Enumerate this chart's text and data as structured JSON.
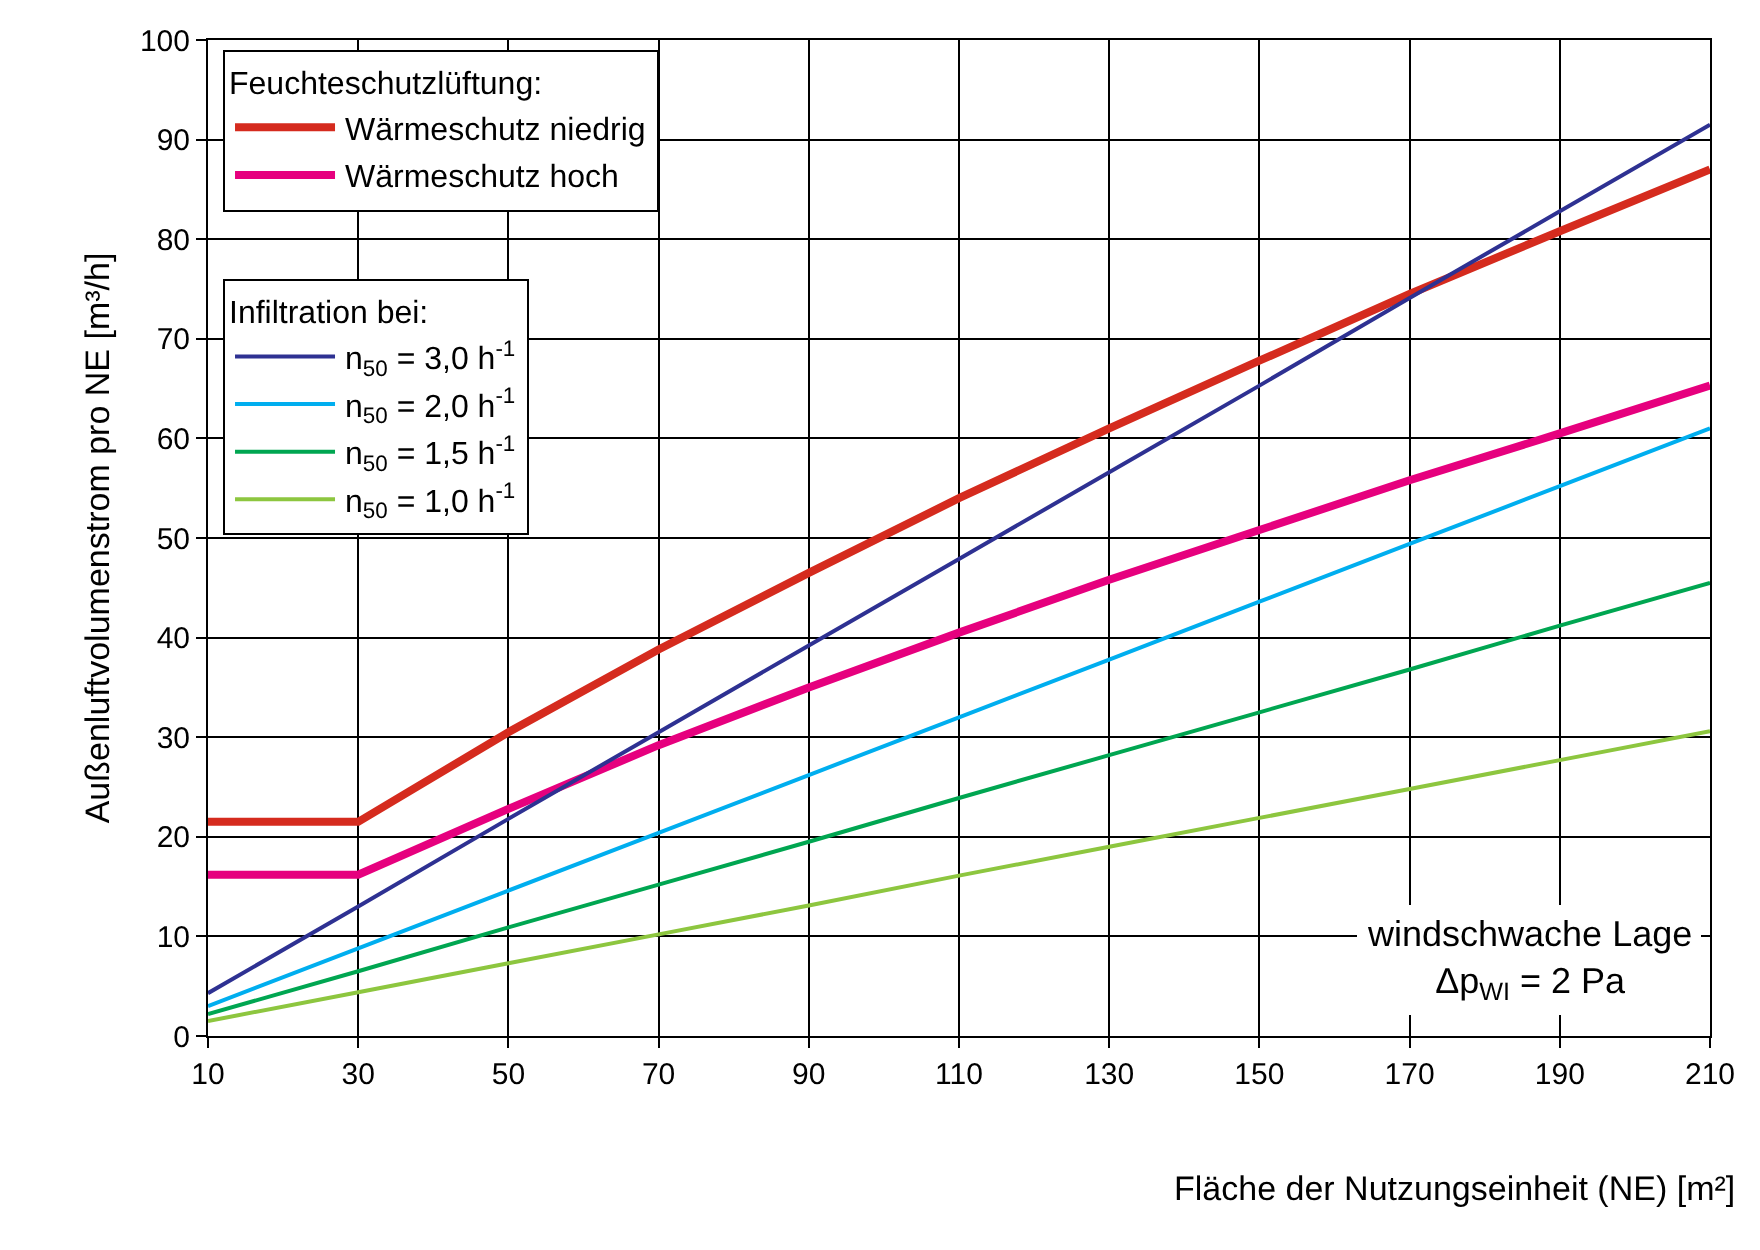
{
  "chart_data": {
    "type": "line",
    "xlabel": "Fläche der Nutzungseinheit (NE) [m²]",
    "ylabel": "Außenluftvolumenstrom pro NE [m³/h]",
    "x": [
      10,
      30,
      50,
      70,
      90,
      110,
      130,
      150,
      170,
      190,
      210
    ],
    "xlim": [
      10,
      210
    ],
    "xticks": [
      10,
      30,
      50,
      70,
      90,
      110,
      130,
      150,
      170,
      190,
      210
    ],
    "ylim": [
      0,
      100
    ],
    "yticks": [
      0,
      10,
      20,
      30,
      40,
      50,
      60,
      70,
      80,
      90,
      100
    ],
    "grid": true,
    "legend": "top left",
    "marker": "none",
    "line_style": "solid",
    "legend_title": [
      "Feuchteschutzlüftung:",
      null,
      "Infiltration bei:",
      null,
      null,
      null
    ],
    "series": [
      {
        "name": "Wärmeschutz niedrig",
        "color": "#d52b1e",
        "values": [
          21.5,
          21.5,
          30.5,
          38.8,
          46.5,
          54,
          61,
          67.8,
          74.5,
          80.8,
          87
        ]
      },
      {
        "name": "Wärmeschutz hoch",
        "color": "#e6007e",
        "values": [
          16.2,
          16.2,
          22.8,
          29.2,
          35,
          40.5,
          45.8,
          50.8,
          55.8,
          60.5,
          65.3
        ]
      },
      {
        "name": "n$_{50}$ = 3,0 h$^{-1}$",
        "color": "#2e3192",
        "values": [
          4.3,
          13,
          21.8,
          30.5,
          39.2,
          47.9,
          56.6,
          65.3,
          74.1,
          82.8,
          91.5
        ]
      },
      {
        "name": "n$_{50}$ = 2,0 h$^{-1}$",
        "color": "#00aeef",
        "values": [
          3,
          8.8,
          14.6,
          20.4,
          26.2,
          32,
          37.8,
          43.6,
          49.4,
          55.2,
          61
        ]
      },
      {
        "name": "n$_{50}$ = 1,5 h$^{-1}$",
        "color": "#00a651",
        "values": [
          2.2,
          6.5,
          10.9,
          15.2,
          19.5,
          23.9,
          28.2,
          32.5,
          36.8,
          41.2,
          45.5
        ]
      },
      {
        "name": "n$_{50}$ = 1,0 h$^{-1}$",
        "color": "#8dc63f",
        "values": [
          1.5,
          4.4,
          7.3,
          10.2,
          13.1,
          16.1,
          19,
          21.9,
          24.8,
          27.7,
          30.6
        ]
      }
    ],
    "annotations": [
      "windschwache Lage\nΔp$_{WI}$ = 2 Pa"
    ]
  }
}
